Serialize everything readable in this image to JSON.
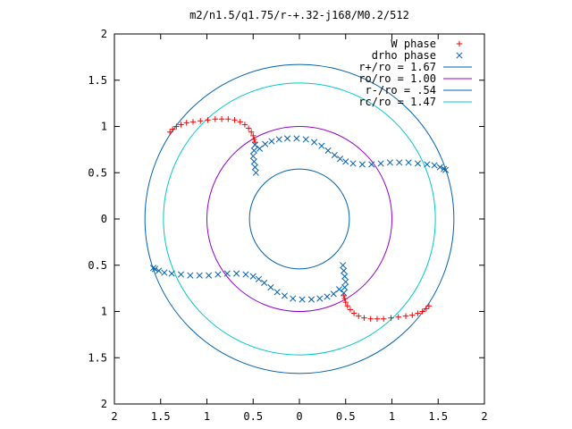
{
  "chart_data": {
    "type": "scatter",
    "title": "m2/n1.5/q1.75/r-+.32-j168/M0.2/512",
    "xlabel": "",
    "ylabel": "",
    "xlim": [
      -2,
      2
    ],
    "ylim": [
      -2,
      2
    ],
    "grid": false,
    "legend_position": "top-right",
    "x_ticks": [
      {
        "value": -2,
        "label": "2"
      },
      {
        "value": -1.5,
        "label": "1.5"
      },
      {
        "value": -1,
        "label": "1"
      },
      {
        "value": -0.5,
        "label": "0.5"
      },
      {
        "value": 0,
        "label": "0"
      },
      {
        "value": 0.5,
        "label": "0.5"
      },
      {
        "value": 1,
        "label": "1"
      },
      {
        "value": 1.5,
        "label": "1.5"
      },
      {
        "value": 2,
        "label": "2"
      }
    ],
    "y_ticks": [
      {
        "value": 2,
        "label": "2"
      },
      {
        "value": 1.5,
        "label": "1.5"
      },
      {
        "value": 1,
        "label": "1"
      },
      {
        "value": 0.5,
        "label": "0.5"
      },
      {
        "value": 0,
        "label": "0"
      },
      {
        "value": -0.5,
        "label": "0.5"
      },
      {
        "value": -1,
        "label": "1"
      },
      {
        "value": -1.5,
        "label": "1.5"
      },
      {
        "value": -2,
        "label": "2"
      }
    ],
    "circles": [
      {
        "name": "r+/ro = 1.67",
        "radius": 1.67,
        "color": "#0060ad"
      },
      {
        "name": "ro/ro = 1.00",
        "radius": 1.0,
        "color": "#9400d3"
      },
      {
        "name": "r-/ro = .54",
        "radius": 0.54,
        "color": "#0060ad"
      },
      {
        "name": "rc/ro = 1.47",
        "radius": 1.47,
        "color": "#00c8c8"
      }
    ],
    "series": [
      {
        "name": "W phase",
        "marker": "+",
        "color": "#ff0000",
        "points": [
          [
            -1.4,
            0.94
          ],
          [
            -1.37,
            0.97
          ],
          [
            -1.33,
            1.0
          ],
          [
            -1.28,
            1.02
          ],
          [
            -1.22,
            1.04
          ],
          [
            -1.15,
            1.05
          ],
          [
            -1.07,
            1.06
          ],
          [
            -0.99,
            1.07
          ],
          [
            -0.91,
            1.08
          ],
          [
            -0.84,
            1.08
          ],
          [
            -0.77,
            1.08
          ],
          [
            -0.7,
            1.07
          ],
          [
            -0.64,
            1.05
          ],
          [
            -0.59,
            1.02
          ],
          [
            -0.55,
            0.98
          ],
          [
            -0.52,
            0.94
          ],
          [
            -0.5,
            0.9
          ],
          [
            -0.49,
            0.86
          ],
          [
            -0.48,
            0.83
          ],
          [
            1.4,
            -0.94
          ],
          [
            1.37,
            -0.97
          ],
          [
            1.33,
            -1.0
          ],
          [
            1.28,
            -1.02
          ],
          [
            1.22,
            -1.04
          ],
          [
            1.15,
            -1.05
          ],
          [
            1.07,
            -1.06
          ],
          [
            0.99,
            -1.07
          ],
          [
            0.91,
            -1.08
          ],
          [
            0.84,
            -1.08
          ],
          [
            0.77,
            -1.08
          ],
          [
            0.7,
            -1.07
          ],
          [
            0.64,
            -1.05
          ],
          [
            0.59,
            -1.02
          ],
          [
            0.55,
            -0.98
          ],
          [
            0.52,
            -0.94
          ],
          [
            0.5,
            -0.9
          ],
          [
            0.49,
            -0.86
          ],
          [
            0.48,
            -0.83
          ]
        ]
      },
      {
        "name": "drho phase",
        "marker": "x",
        "color": "#0060ad",
        "points": [
          [
            -0.48,
            0.8
          ],
          [
            -0.49,
            0.74
          ],
          [
            -0.5,
            0.68
          ],
          [
            -0.49,
            0.62
          ],
          [
            -0.48,
            0.56
          ],
          [
            -0.47,
            0.5
          ],
          [
            -0.43,
            0.76
          ],
          [
            -0.37,
            0.81
          ],
          [
            -0.3,
            0.84
          ],
          [
            -0.22,
            0.86
          ],
          [
            -0.13,
            0.87
          ],
          [
            -0.03,
            0.87
          ],
          [
            0.07,
            0.86
          ],
          [
            0.16,
            0.83
          ],
          [
            0.24,
            0.79
          ],
          [
            0.31,
            0.74
          ],
          [
            0.38,
            0.69
          ],
          [
            0.44,
            0.65
          ],
          [
            0.5,
            0.62
          ],
          [
            0.58,
            0.6
          ],
          [
            0.68,
            0.59
          ],
          [
            0.78,
            0.59
          ],
          [
            0.88,
            0.6
          ],
          [
            0.98,
            0.61
          ],
          [
            1.08,
            0.61
          ],
          [
            1.18,
            0.61
          ],
          [
            1.28,
            0.6
          ],
          [
            1.38,
            0.59
          ],
          [
            1.46,
            0.58
          ],
          [
            1.52,
            0.56
          ],
          [
            1.56,
            0.54
          ],
          [
            1.58,
            0.53
          ],
          [
            0.48,
            -0.8
          ],
          [
            0.49,
            -0.74
          ],
          [
            0.5,
            -0.68
          ],
          [
            0.49,
            -0.62
          ],
          [
            0.48,
            -0.56
          ],
          [
            0.47,
            -0.5
          ],
          [
            0.43,
            -0.76
          ],
          [
            0.37,
            -0.81
          ],
          [
            0.3,
            -0.84
          ],
          [
            0.22,
            -0.86
          ],
          [
            0.13,
            -0.87
          ],
          [
            0.03,
            -0.87
          ],
          [
            -0.07,
            -0.86
          ],
          [
            -0.16,
            -0.83
          ],
          [
            -0.24,
            -0.79
          ],
          [
            -0.31,
            -0.74
          ],
          [
            -0.38,
            -0.69
          ],
          [
            -0.44,
            -0.65
          ],
          [
            -0.5,
            -0.62
          ],
          [
            -0.58,
            -0.6
          ],
          [
            -0.68,
            -0.59
          ],
          [
            -0.78,
            -0.59
          ],
          [
            -0.88,
            -0.6
          ],
          [
            -0.98,
            -0.61
          ],
          [
            -1.08,
            -0.61
          ],
          [
            -1.18,
            -0.61
          ],
          [
            -1.28,
            -0.6
          ],
          [
            -1.38,
            -0.59
          ],
          [
            -1.46,
            -0.58
          ],
          [
            -1.52,
            -0.56
          ],
          [
            -1.56,
            -0.54
          ],
          [
            -1.58,
            -0.53
          ]
        ]
      }
    ]
  }
}
